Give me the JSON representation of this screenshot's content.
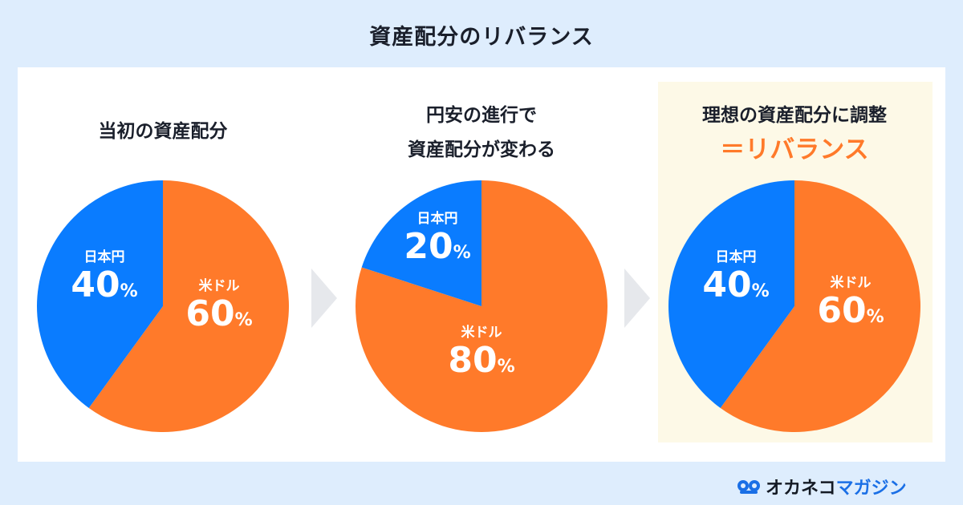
{
  "title": "資産配分のリバランス",
  "panels": [
    {
      "heading_lines": [
        "当初の資産配分"
      ],
      "slices": [
        {
          "label": "米ドル",
          "value": 60,
          "unit": "%"
        },
        {
          "label": "日本円",
          "value": 40,
          "unit": "%"
        }
      ]
    },
    {
      "heading_lines": [
        "円安の進行で",
        "資産配分が変わる"
      ],
      "slices": [
        {
          "label": "米ドル",
          "value": 80,
          "unit": "%"
        },
        {
          "label": "日本円",
          "value": 20,
          "unit": "%"
        }
      ]
    },
    {
      "heading_lines": [
        "理想の資産配分に調整"
      ],
      "heading_accent": "＝リバランス",
      "slices": [
        {
          "label": "米ドル",
          "value": 60,
          "unit": "%"
        },
        {
          "label": "日本円",
          "value": 40,
          "unit": "%"
        }
      ]
    }
  ],
  "colors": {
    "usd": "#ff7a2a",
    "jpy": "#0a7cff",
    "accent": "#ff7a2a"
  },
  "logo": {
    "part1": "オカネコ",
    "part2": "マガジン"
  },
  "chart_data": [
    {
      "type": "pie",
      "title": "当初の資産配分",
      "categories": [
        "米ドル",
        "日本円"
      ],
      "values": [
        60,
        40
      ]
    },
    {
      "type": "pie",
      "title": "円安の進行で資産配分が変わる",
      "categories": [
        "米ドル",
        "日本円"
      ],
      "values": [
        80,
        20
      ]
    },
    {
      "type": "pie",
      "title": "理想の資産配分に調整＝リバランス",
      "categories": [
        "米ドル",
        "日本円"
      ],
      "values": [
        60,
        40
      ]
    }
  ]
}
